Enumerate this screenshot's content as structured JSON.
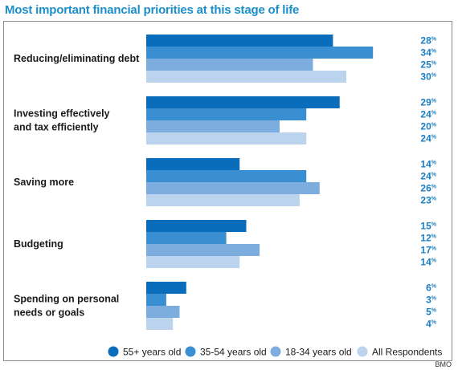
{
  "title": "Most important financial priorities at this stage of life",
  "source": "BMO",
  "colors": {
    "title": "#1a8fc8",
    "label_text": "#1a1a1a",
    "value_text": "#1a7ec2",
    "series": [
      "#0a6dbc",
      "#3a8fd2",
      "#7cadde",
      "#bcd3ee"
    ]
  },
  "chart_data": {
    "type": "bar",
    "orientation": "horizontal",
    "title": "Most important financial priorities at this stage of life",
    "categories": [
      [
        "Reducing/eliminating debt"
      ],
      [
        "Investing effectively",
        "and tax efficiently"
      ],
      [
        "Saving more"
      ],
      [
        "Budgeting"
      ],
      [
        "Spending on personal",
        "needs or goals"
      ]
    ],
    "series": [
      {
        "name": "55+ years old",
        "values": [
          28,
          29,
          14,
          15,
          6
        ]
      },
      {
        "name": "35-54 years old",
        "values": [
          34,
          24,
          24,
          12,
          3
        ]
      },
      {
        "name": "18-34 years old",
        "values": [
          25,
          20,
          26,
          17,
          5
        ]
      },
      {
        "name": "All Respondents",
        "values": [
          30,
          24,
          23,
          14,
          4
        ]
      }
    ],
    "value_suffix": "%",
    "xlim": [
      0,
      34
    ],
    "grid": false,
    "legend_position": "bottom"
  }
}
